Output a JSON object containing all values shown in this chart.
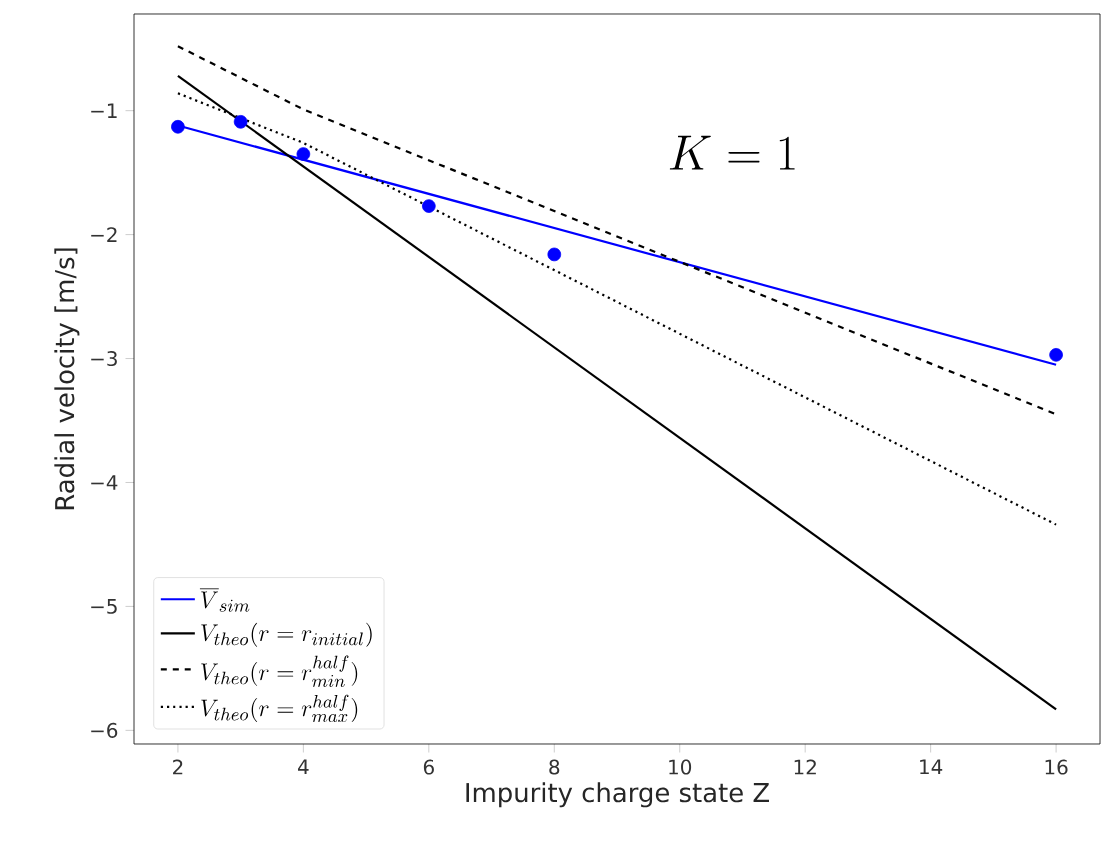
{
  "chart_data": {
    "type": "line",
    "xlabel": "Impurity charge state Z",
    "ylabel": "Radial velocity [m/s]",
    "annotations": [
      "K = 1"
    ],
    "xlim": [
      1.3,
      16.7
    ],
    "ylim": [
      -6.11,
      -0.22
    ],
    "xticks": [
      2,
      4,
      6,
      8,
      10,
      12,
      14,
      16
    ],
    "yticks": [
      {
        "value": -1,
        "label": "−1"
      },
      {
        "value": -2,
        "label": "−2"
      },
      {
        "value": -3,
        "label": "−3"
      },
      {
        "value": -4,
        "label": "−4"
      },
      {
        "value": -5,
        "label": "−5"
      },
      {
        "value": -6,
        "label": "−6"
      }
    ],
    "legend": "bottom left",
    "grid": false,
    "series": [
      {
        "type": "scatter",
        "marker": "circle",
        "color": "#0000ff",
        "x": [
          2,
          3,
          4,
          6,
          8,
          16
        ],
        "values": [
          -1.13,
          -1.09,
          -1.35,
          -1.77,
          -2.16,
          -2.97
        ]
      },
      {
        "name": "\\overline{V}_{sim}",
        "type": "line",
        "line_style": "solid",
        "color": "#0000ff",
        "x": [
          2,
          16
        ],
        "values": [
          -1.12,
          -3.05
        ]
      },
      {
        "name": "V_{theo}(r = r_{initial})",
        "type": "line",
        "line_style": "solid",
        "color": "#000000",
        "x": [
          2,
          16
        ],
        "values": [
          -0.72,
          -5.83
        ]
      },
      {
        "name": "V_{theo}(r = r^{half}_{min})",
        "type": "line",
        "line_style": "dashed",
        "color": "#000000",
        "x": [
          2,
          4,
          16
        ],
        "values": [
          -0.48,
          -0.99,
          -3.45
        ]
      },
      {
        "name": "V_{theo}(r = r^{half}_{max})",
        "type": "line",
        "line_style": "dotted",
        "color": "#000000",
        "x": [
          2,
          4,
          16
        ],
        "values": [
          -0.86,
          -1.26,
          -4.34
        ]
      }
    ]
  }
}
